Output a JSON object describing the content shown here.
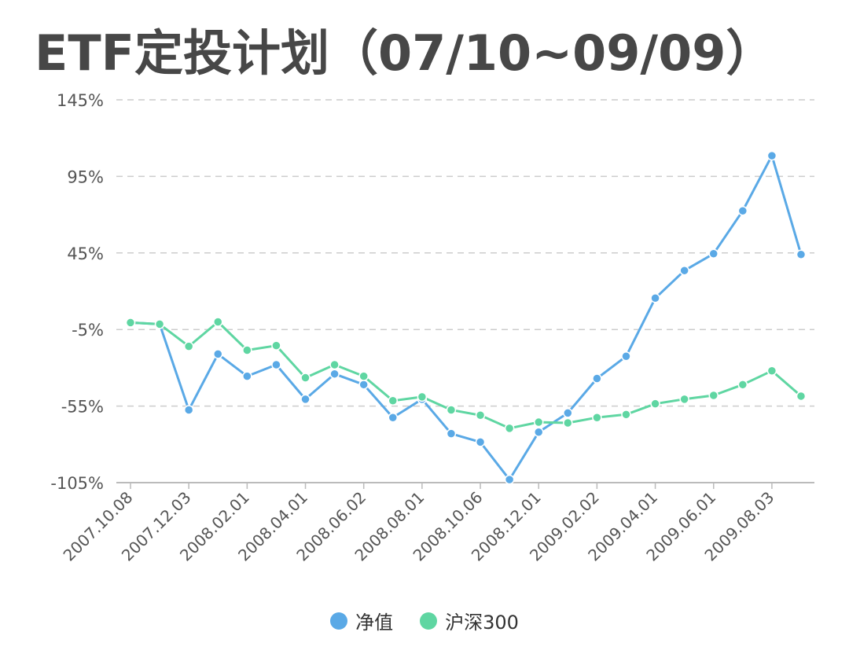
{
  "title": "ETF定投计划（07/10~09/09）",
  "colors": {
    "nav": "#5aa9e6",
    "index": "#5fd6a2",
    "grid": "#cccccc",
    "axis": "#bbbbbb",
    "text": "#555555"
  },
  "chart_data": {
    "type": "line",
    "y_tick_labels": [
      "145%",
      "95%",
      "45%",
      "-5%",
      "-55%",
      "-105%"
    ],
    "y_tick_values": [
      145,
      95,
      45,
      -5,
      -55,
      -105
    ],
    "ylim": [
      -105,
      145
    ],
    "x_tick_labels": [
      "2007.10.08",
      "2007.12.03",
      "2008.02.01",
      "2008.04.01",
      "2008.06.02",
      "2008.08.01",
      "2008.10.06",
      "2008.12.01",
      "2009.02.02",
      "2009.04.01",
      "2009.06.01",
      "2009.08.03"
    ],
    "grid": true,
    "legend": "bottom-center",
    "series": [
      {
        "name": "净值",
        "color": "#5aa9e6",
        "values": [
          -0.5,
          -1.5,
          -57.5,
          -21,
          -35.5,
          -28,
          -50.5,
          -34,
          -41,
          -62.5,
          -50.5,
          -73,
          -78.5,
          -103,
          -72,
          -59.5,
          -37,
          -22.5,
          15.5,
          33.5,
          44.5,
          72.5,
          108.5,
          44
        ]
      },
      {
        "name": "沪深300",
        "color": "#5fd6a2",
        "values": [
          -0.5,
          -1.5,
          -16,
          0,
          -18.5,
          -15.5,
          -36.5,
          -28,
          -35.5,
          -51.5,
          -49,
          -57.5,
          -61,
          -69.5,
          -65.5,
          -66,
          -62.5,
          -60.5,
          -53.5,
          -50.5,
          -48,
          -41,
          -32,
          -48.5
        ]
      }
    ]
  }
}
